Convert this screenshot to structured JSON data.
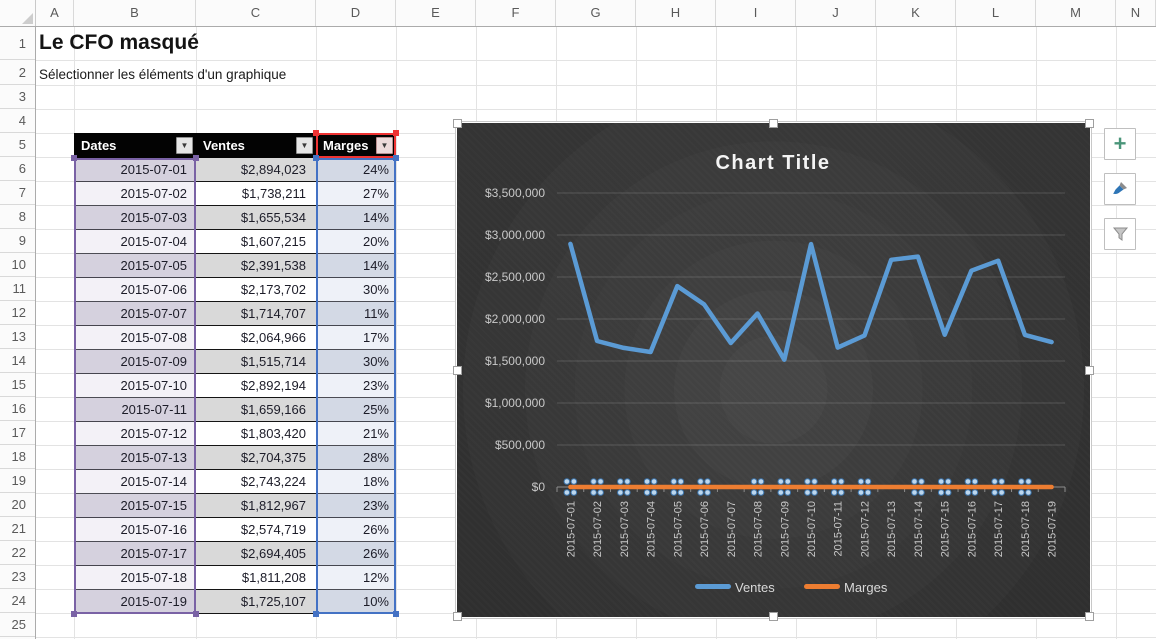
{
  "page": {
    "title": "Le CFO masqué",
    "subtitle": "Sélectionner les éléments d'un graphique"
  },
  "spreadsheet": {
    "column_letters": [
      "A",
      "B",
      "C",
      "D",
      "E",
      "F",
      "G",
      "H",
      "I",
      "J",
      "K",
      "L",
      "M",
      "N"
    ],
    "row_numbers": [
      1,
      2,
      3,
      4,
      5,
      6,
      7,
      8,
      9,
      10,
      11,
      12,
      13,
      14,
      15,
      16,
      17,
      18,
      19,
      20,
      21,
      22,
      23,
      24,
      25
    ]
  },
  "table": {
    "headers": [
      {
        "label": "Dates",
        "filter_icon": "▼"
      },
      {
        "label": "Ventes",
        "filter_icon": "▼"
      },
      {
        "label": "Marges",
        "filter_icon": "▼"
      }
    ],
    "rows": [
      {
        "date": "2015-07-01",
        "ventes": "$2,894,023",
        "marges": "24%"
      },
      {
        "date": "2015-07-02",
        "ventes": "$1,738,211",
        "marges": "27%"
      },
      {
        "date": "2015-07-03",
        "ventes": "$1,655,534",
        "marges": "14%"
      },
      {
        "date": "2015-07-04",
        "ventes": "$1,607,215",
        "marges": "20%"
      },
      {
        "date": "2015-07-05",
        "ventes": "$2,391,538",
        "marges": "14%"
      },
      {
        "date": "2015-07-06",
        "ventes": "$2,173,702",
        "marges": "30%"
      },
      {
        "date": "2015-07-07",
        "ventes": "$1,714,707",
        "marges": "11%"
      },
      {
        "date": "2015-07-08",
        "ventes": "$2,064,966",
        "marges": "17%"
      },
      {
        "date": "2015-07-09",
        "ventes": "$1,515,714",
        "marges": "30%"
      },
      {
        "date": "2015-07-10",
        "ventes": "$2,892,194",
        "marges": "23%"
      },
      {
        "date": "2015-07-11",
        "ventes": "$1,659,166",
        "marges": "25%"
      },
      {
        "date": "2015-07-12",
        "ventes": "$1,803,420",
        "marges": "21%"
      },
      {
        "date": "2015-07-13",
        "ventes": "$2,704,375",
        "marges": "28%"
      },
      {
        "date": "2015-07-14",
        "ventes": "$2,743,224",
        "marges": "18%"
      },
      {
        "date": "2015-07-15",
        "ventes": "$1,812,967",
        "marges": "23%"
      },
      {
        "date": "2015-07-16",
        "ventes": "$2,574,719",
        "marges": "26%"
      },
      {
        "date": "2015-07-17",
        "ventes": "$2,694,405",
        "marges": "26%"
      },
      {
        "date": "2015-07-18",
        "ventes": "$1,811,208",
        "marges": "12%"
      },
      {
        "date": "2015-07-19",
        "ventes": "$1,725,107",
        "marges": "10%"
      }
    ]
  },
  "chart_data": {
    "type": "line",
    "title": "Chart Title",
    "x": [
      "2015-07-01",
      "2015-07-02",
      "2015-07-03",
      "2015-07-04",
      "2015-07-05",
      "2015-07-06",
      "2015-07-07",
      "2015-07-08",
      "2015-07-09",
      "2015-07-10",
      "2015-07-11",
      "2015-07-12",
      "2015-07-13",
      "2015-07-14",
      "2015-07-15",
      "2015-07-16",
      "2015-07-17",
      "2015-07-18",
      "2015-07-19"
    ],
    "series": [
      {
        "name": "Ventes",
        "color": "#5B9BD5",
        "values": [
          2894023,
          1738211,
          1655534,
          1607215,
          2391538,
          2173702,
          1714707,
          2064966,
          1515714,
          2892194,
          1659166,
          1803420,
          2704375,
          2743224,
          1812967,
          2574719,
          2694405,
          1811208,
          1725107
        ]
      },
      {
        "name": "Marges",
        "color": "#ED7D31",
        "values": [
          0.24,
          0.27,
          0.14,
          0.2,
          0.14,
          0.3,
          0.11,
          0.17,
          0.3,
          0.23,
          0.25,
          0.21,
          0.28,
          0.18,
          0.23,
          0.26,
          0.26,
          0.12,
          0.1
        ]
      }
    ],
    "ylim": [
      0,
      3500000
    ],
    "yticks": [
      {
        "label": "$3,500,000",
        "value": 3500000
      },
      {
        "label": "$3,000,000",
        "value": 3000000
      },
      {
        "label": "$2,500,000",
        "value": 2500000
      },
      {
        "label": "$2,000,000",
        "value": 2000000
      },
      {
        "label": "$1,500,000",
        "value": 1500000
      },
      {
        "label": "$1,000,000",
        "value": 1000000
      },
      {
        "label": "$500,000",
        "value": 500000
      },
      {
        "label": "$0",
        "value": 0
      }
    ],
    "grid": true,
    "legend_position": "bottom",
    "selected_series": "Marges",
    "selection_dot_skip_indices": [
      6,
      12,
      18
    ]
  },
  "colors": {
    "ventes_line": "#5B9BD5",
    "marges_line": "#ED7D31",
    "category_range": "#7a62a5",
    "value_range": "#4472c4",
    "series_name_range": "#ee3333",
    "table_header_bg": "#000000",
    "point_dot_fill": "#bdd7ee",
    "point_dot_stroke": "#3c74ab"
  },
  "chart_tools": {
    "elements_label": "+",
    "styles_icon": "paintbrush",
    "filters_icon": "funnel"
  }
}
